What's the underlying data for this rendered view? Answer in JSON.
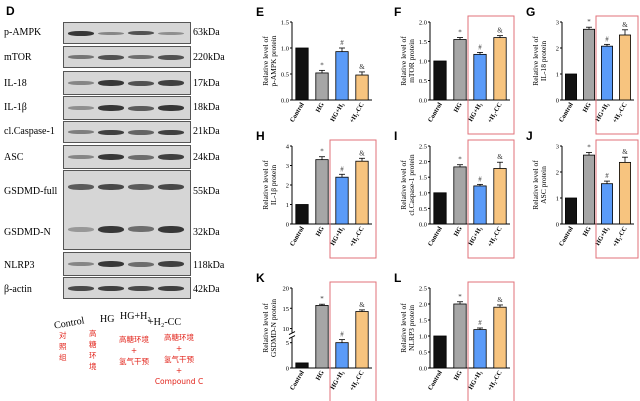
{
  "blot": {
    "letter": "D",
    "rows": [
      {
        "label": "p-AMPK",
        "kda": "63kDa"
      },
      {
        "label": "mTOR",
        "kda": "220kDa"
      },
      {
        "label": "IL-18",
        "kda": "17kDa"
      },
      {
        "label": "IL-1β",
        "kda": "18kDa"
      },
      {
        "label": "cl.Caspase-1",
        "kda": "21kDa"
      },
      {
        "label": "ASC",
        "kda": "24kDa"
      },
      {
        "label": "GSDMD-full",
        "kda": "55kDa"
      },
      {
        "label": "GSDMD-N",
        "kda": "32kDa"
      },
      {
        "label": "NLRP3",
        "kda": "118kDa"
      },
      {
        "label": "β-actin",
        "kda": "42kDa"
      }
    ],
    "groups": [
      "Control",
      "HG",
      "HG+H₂",
      "+H₂-CC"
    ],
    "chinese_notes": [
      "对\n照\n组",
      "高\n糖\n环\n境",
      "高糖环境\n+\n氢气干预",
      "高糖环境\n+\n氢气干预\n+\nCompound C"
    ]
  },
  "colors": {
    "control": "#111111",
    "hg": "#a6a6a6",
    "hg_h2": "#5b9bf8",
    "h2_cc": "#f7c47f",
    "highlight_box": "#e0727a"
  },
  "chart_data": [
    {
      "panel": "E",
      "type": "bar",
      "ylabel": "Relative level of p-AMPK protein",
      "categories": [
        "Control",
        "HG",
        "HG+H₂",
        "+H₂-CC"
      ],
      "values": [
        1.0,
        0.52,
        0.93,
        0.48
      ],
      "errors": [
        0,
        0.05,
        0.07,
        0.06
      ],
      "marks": [
        "",
        "*",
        "#",
        "&"
      ],
      "ylim": [
        0,
        1.5
      ],
      "yticks": [
        0.0,
        0.5,
        1.0,
        1.5
      ],
      "highlight": false
    },
    {
      "panel": "F",
      "type": "bar",
      "ylabel": "Relative level of mTOR protein",
      "categories": [
        "Control",
        "HG",
        "HG+H₂",
        "+H₂-CC"
      ],
      "values": [
        1.0,
        1.55,
        1.17,
        1.6
      ],
      "errors": [
        0,
        0.05,
        0.05,
        0.05
      ],
      "marks": [
        "",
        "*",
        "#",
        "&"
      ],
      "ylim": [
        0,
        2.0
      ],
      "yticks": [
        0.0,
        0.5,
        1.0,
        1.5,
        2.0
      ],
      "highlight": true
    },
    {
      "panel": "G",
      "type": "bar",
      "ylabel": "Relative level of IL-18 protein",
      "categories": [
        "Control",
        "HG",
        "HG+H₂",
        "+H₂-CC"
      ],
      "values": [
        1.0,
        2.72,
        2.07,
        2.5
      ],
      "errors": [
        0,
        0.08,
        0.07,
        0.2
      ],
      "marks": [
        "",
        "*",
        "#",
        "&"
      ],
      "ylim": [
        0,
        3
      ],
      "yticks": [
        0,
        1,
        2,
        3
      ],
      "highlight": true
    },
    {
      "panel": "H",
      "type": "bar",
      "ylabel": "Relative level of IL-1β protein",
      "categories": [
        "Control",
        "HG",
        "HG+H₂",
        "+H₂-CC"
      ],
      "values": [
        1.0,
        3.3,
        2.4,
        3.22
      ],
      "errors": [
        0,
        0.15,
        0.15,
        0.15
      ],
      "marks": [
        "",
        "*",
        "#",
        "&"
      ],
      "ylim": [
        0,
        4
      ],
      "yticks": [
        0,
        1,
        2,
        3,
        4
      ],
      "highlight": true
    },
    {
      "panel": "I",
      "type": "bar",
      "ylabel": "Relative level of cl.Caspase-1 protein",
      "categories": [
        "Control",
        "HG",
        "HG+H₂",
        "+H₂-CC"
      ],
      "values": [
        1.0,
        1.83,
        1.22,
        1.78
      ],
      "errors": [
        0,
        0.07,
        0.05,
        0.2
      ],
      "marks": [
        "",
        "*",
        "#",
        "&"
      ],
      "ylim": [
        0,
        2.5
      ],
      "yticks": [
        0.0,
        0.5,
        1.0,
        1.5,
        2.0,
        2.5
      ],
      "highlight": true
    },
    {
      "panel": "J",
      "type": "bar",
      "ylabel": "Relative level of ASC protein",
      "categories": [
        "Control",
        "HG",
        "HG+H₂",
        "+H₂-CC"
      ],
      "values": [
        1.0,
        2.65,
        1.55,
        2.37
      ],
      "errors": [
        0,
        0.1,
        0.1,
        0.2
      ],
      "marks": [
        "",
        "*",
        "#",
        "&"
      ],
      "ylim": [
        0,
        3
      ],
      "yticks": [
        0,
        1,
        2,
        3
      ],
      "highlight": true
    },
    {
      "panel": "K",
      "type": "bar",
      "ylabel": "Relative level of GSDMD-N protein",
      "categories": [
        "Control",
        "HG",
        "HG+H₂",
        "+H₂-CC"
      ],
      "values": [
        1.0,
        15.7,
        5.0,
        14.2
      ],
      "errors": [
        0,
        0.3,
        0.6,
        0.4
      ],
      "marks": [
        "",
        "*",
        "#",
        "&"
      ],
      "ylim": [
        0,
        20
      ],
      "yticks": [
        0,
        5,
        10,
        15,
        20
      ],
      "axis_break": [
        6,
        9
      ],
      "highlight": true
    },
    {
      "panel": "L",
      "type": "bar",
      "ylabel": "Relative level of NLRP3 protein",
      "categories": [
        "Control",
        "HG",
        "HG+H₂",
        "+H₂-CC"
      ],
      "values": [
        1.0,
        2.0,
        1.2,
        1.9
      ],
      "errors": [
        0,
        0.07,
        0.05,
        0.07
      ],
      "marks": [
        "",
        "*",
        "#",
        "&"
      ],
      "ylim": [
        0,
        2.5
      ],
      "yticks": [
        0.0,
        0.5,
        1.0,
        1.5,
        2.0,
        2.5
      ],
      "highlight": true
    }
  ]
}
